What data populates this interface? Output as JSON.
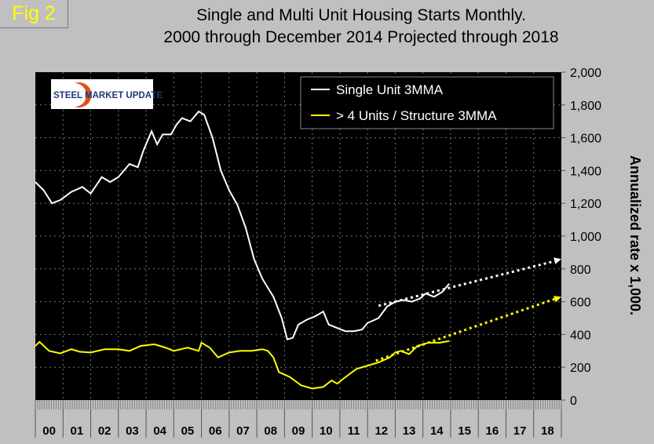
{
  "fig_label": "Fig 2",
  "logo_text": "STEEL MARKET UPDATE",
  "chart_data": {
    "type": "line",
    "title": [
      "Single and Multi Unit Housing Starts Monthly.",
      "2000 through December 2014 Projected through 2018"
    ],
    "ylabel": "Annualized rate x 1,000.",
    "xlabel": "",
    "ylim": [
      0,
      2000
    ],
    "xlim": [
      2000,
      2019
    ],
    "yticks": [
      "0",
      "200",
      "400",
      "600",
      "800",
      "1,000",
      "1,200",
      "1,400",
      "1,600",
      "1,800",
      "2,000"
    ],
    "xtick_labels": [
      "00",
      "01",
      "02",
      "03",
      "04",
      "05",
      "06",
      "07",
      "08",
      "09",
      "10",
      "11",
      "12",
      "13",
      "14",
      "15",
      "16",
      "17",
      "18"
    ],
    "grid": true,
    "legend_position": "top-right",
    "series": [
      {
        "name": "Single Unit 3MMA",
        "color": "#ffffff",
        "x": [
          2000.0,
          2000.3,
          2000.6,
          2000.9,
          2001.3,
          2001.7,
          2002.0,
          2002.4,
          2002.7,
          2003.0,
          2003.4,
          2003.7,
          2003.9,
          2004.2,
          2004.4,
          2004.6,
          2004.9,
          2005.1,
          2005.3,
          2005.6,
          2005.9,
          2006.1,
          2006.4,
          2006.7,
          2007.0,
          2007.3,
          2007.6,
          2007.9,
          2008.2,
          2008.6,
          2008.9,
          2009.1,
          2009.3,
          2009.5,
          2009.8,
          2010.1,
          2010.4,
          2010.6,
          2010.9,
          2011.2,
          2011.5,
          2011.8,
          2012.0,
          2012.4,
          2012.7,
          2013.0,
          2013.3,
          2013.6,
          2013.9,
          2014.1,
          2014.4,
          2014.7,
          2014.95
        ],
        "y": [
          1330,
          1280,
          1200,
          1220,
          1270,
          1300,
          1260,
          1360,
          1330,
          1360,
          1440,
          1420,
          1520,
          1640,
          1560,
          1620,
          1620,
          1680,
          1720,
          1700,
          1760,
          1740,
          1600,
          1400,
          1280,
          1190,
          1050,
          860,
          740,
          630,
          500,
          370,
          380,
          460,
          490,
          510,
          540,
          460,
          440,
          420,
          420,
          430,
          470,
          500,
          570,
          600,
          610,
          600,
          620,
          650,
          630,
          660,
          710
        ]
      },
      {
        "name": "> 4 Units / Structure 3MMA",
        "color": "#ffff00",
        "x": [
          2000.0,
          2000.15,
          2000.5,
          2000.9,
          2001.3,
          2001.6,
          2002.0,
          2002.5,
          2003.0,
          2003.4,
          2003.8,
          2004.3,
          2004.7,
          2005.0,
          2005.5,
          2005.9,
          2006.0,
          2006.3,
          2006.6,
          2007.0,
          2007.4,
          2007.8,
          2008.2,
          2008.4,
          2008.6,
          2008.8,
          2009.2,
          2009.6,
          2010.0,
          2010.4,
          2010.7,
          2010.9,
          2011.2,
          2011.6,
          2012.0,
          2012.4,
          2012.8,
          2013.0,
          2013.2,
          2013.5,
          2013.8,
          2014.2,
          2014.6,
          2014.95
        ],
        "y": [
          330,
          355,
          300,
          285,
          310,
          295,
          290,
          310,
          310,
          300,
          330,
          340,
          320,
          300,
          320,
          300,
          350,
          320,
          260,
          290,
          300,
          300,
          310,
          300,
          260,
          170,
          140,
          90,
          70,
          80,
          120,
          100,
          140,
          190,
          210,
          230,
          260,
          290,
          300,
          280,
          330,
          350,
          350,
          360
        ]
      }
    ],
    "projections": [
      {
        "name": "Single Unit projection",
        "color": "#ffffff",
        "x": [
          2012.4,
          2019.0
        ],
        "y": [
          575,
          860
        ]
      },
      {
        "name": "Multi Unit projection",
        "color": "#ffff00",
        "x": [
          2012.3,
          2019.0
        ],
        "y": [
          240,
          630
        ]
      }
    ]
  }
}
